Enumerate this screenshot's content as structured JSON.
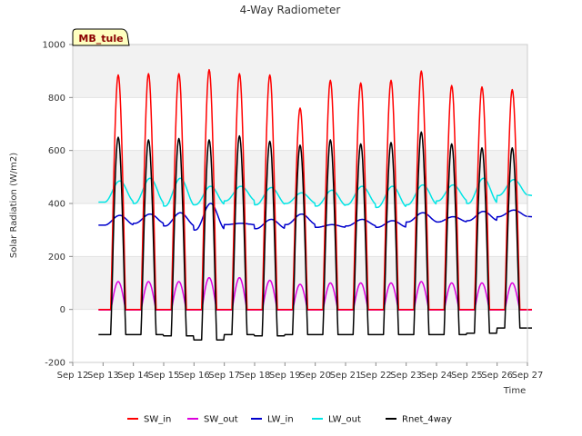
{
  "chart_data": {
    "type": "line",
    "title": "4-Way Radiometer",
    "xlabel": "Time",
    "ylabel": "Solar Radiation (W/m2)",
    "xlim": [
      "2000-09-12",
      "2000-09-27"
    ],
    "ylim": [
      -200,
      1000
    ],
    "yticks": [
      -200,
      0,
      200,
      400,
      600,
      800,
      1000
    ],
    "xtick_labels": [
      "Sep 12",
      "Sep 13",
      "Sep 14",
      "Sep 15",
      "Sep 16",
      "Sep 17",
      "Sep 18",
      "Sep 19",
      "Sep 20",
      "Sep 21",
      "Sep 22",
      "Sep 23",
      "Sep 24",
      "Sep 25",
      "Sep 26",
      "Sep 27"
    ],
    "badge": "MB_tule",
    "background_bands": true,
    "legend_position": "bottom",
    "days": [
      "Sep 13",
      "Sep 14",
      "Sep 15",
      "Sep 16",
      "Sep 17",
      "Sep 18",
      "Sep 19",
      "Sep 20",
      "Sep 21",
      "Sep 22",
      "Sep 23",
      "Sep 24",
      "Sep 25",
      "Sep 26"
    ],
    "series": [
      {
        "name": "SW_in",
        "color": "#ff0000",
        "kind": "daily_peak",
        "night": [
          0,
          0,
          0,
          0,
          0,
          0,
          0,
          0,
          0,
          0,
          0,
          0,
          0,
          0
        ],
        "peak": [
          885,
          890,
          890,
          905,
          890,
          885,
          760,
          865,
          855,
          865,
          900,
          845,
          840,
          830
        ]
      },
      {
        "name": "SW_out",
        "color": "#dd00dd",
        "kind": "daily_peak",
        "night": [
          -2,
          -2,
          -2,
          -2,
          -2,
          -2,
          -2,
          -2,
          -2,
          -2,
          -2,
          -2,
          -2,
          -2
        ],
        "peak": [
          105,
          105,
          105,
          120,
          120,
          110,
          95,
          100,
          100,
          100,
          105,
          100,
          100,
          100
        ]
      },
      {
        "name": "LW_in",
        "color": "#0000cc",
        "kind": "daily_wave",
        "night": [
          318,
          325,
          315,
          300,
          320,
          305,
          320,
          310,
          315,
          310,
          330,
          330,
          335,
          350
        ],
        "peak": [
          355,
          360,
          365,
          400,
          325,
          340,
          360,
          320,
          340,
          335,
          365,
          350,
          370,
          375
        ]
      },
      {
        "name": "LW_out",
        "color": "#00e5e5",
        "kind": "daily_wave",
        "night": [
          405,
          400,
          390,
          395,
          410,
          395,
          400,
          390,
          395,
          385,
          395,
          410,
          400,
          430
        ],
        "peak": [
          485,
          495,
          495,
          465,
          465,
          460,
          440,
          450,
          465,
          465,
          470,
          470,
          495,
          490
        ]
      },
      {
        "name": "Rnet_4way",
        "color": "#000000",
        "kind": "daily_peak",
        "night": [
          -95,
          -95,
          -100,
          -115,
          -95,
          -100,
          -95,
          -95,
          -95,
          -95,
          -95,
          -95,
          -90,
          -70
        ],
        "peak": [
          650,
          640,
          645,
          640,
          655,
          635,
          620,
          640,
          625,
          630,
          670,
          625,
          610,
          610
        ]
      }
    ]
  }
}
